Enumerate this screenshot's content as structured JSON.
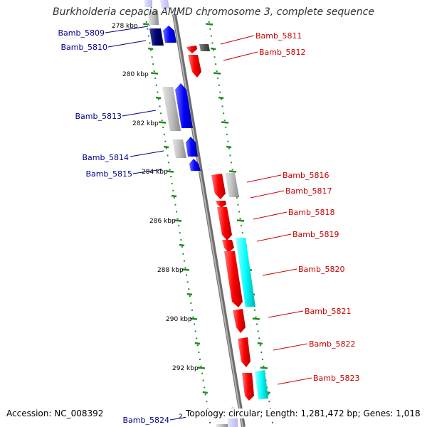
{
  "title": "Burkholderia cepacia AMMD chromosome 3, complete sequence",
  "footer": {
    "accession": "Accession: NC_008392",
    "summary": "Topology: circular; Length: 1,281,472 bp; Genes: 1,018"
  },
  "colors": {
    "backbone": "#8c8c8c",
    "forward_gene": "#0000ff",
    "reverse_gene": "#ff0000",
    "gray_feature": "#c0c0c0",
    "cyan_feature": "#00ffff",
    "tick": "#228b22",
    "forward_label": "#00008b",
    "reverse_label": "#cc0000"
  },
  "ticks": {
    "labels": [
      "278 kbp",
      "280 kbp",
      "282 kbp",
      "284 kbp",
      "286 kbp",
      "288 kbp",
      "290 kbp",
      "292 kbp",
      "2"
    ]
  },
  "forward_genes": [
    "Bamb_5809",
    "Bamb_5810",
    "Bamb_5813",
    "Bamb_5814",
    "Bamb_5815",
    "Bamb_5824"
  ],
  "reverse_genes": [
    "Bamb_5811",
    "Bamb_5812",
    "Bamb_5816",
    "Bamb_5817",
    "Bamb_5818",
    "Bamb_5819",
    "Bamb_5820",
    "Bamb_5821",
    "Bamb_5822",
    "Bamb_5823"
  ]
}
